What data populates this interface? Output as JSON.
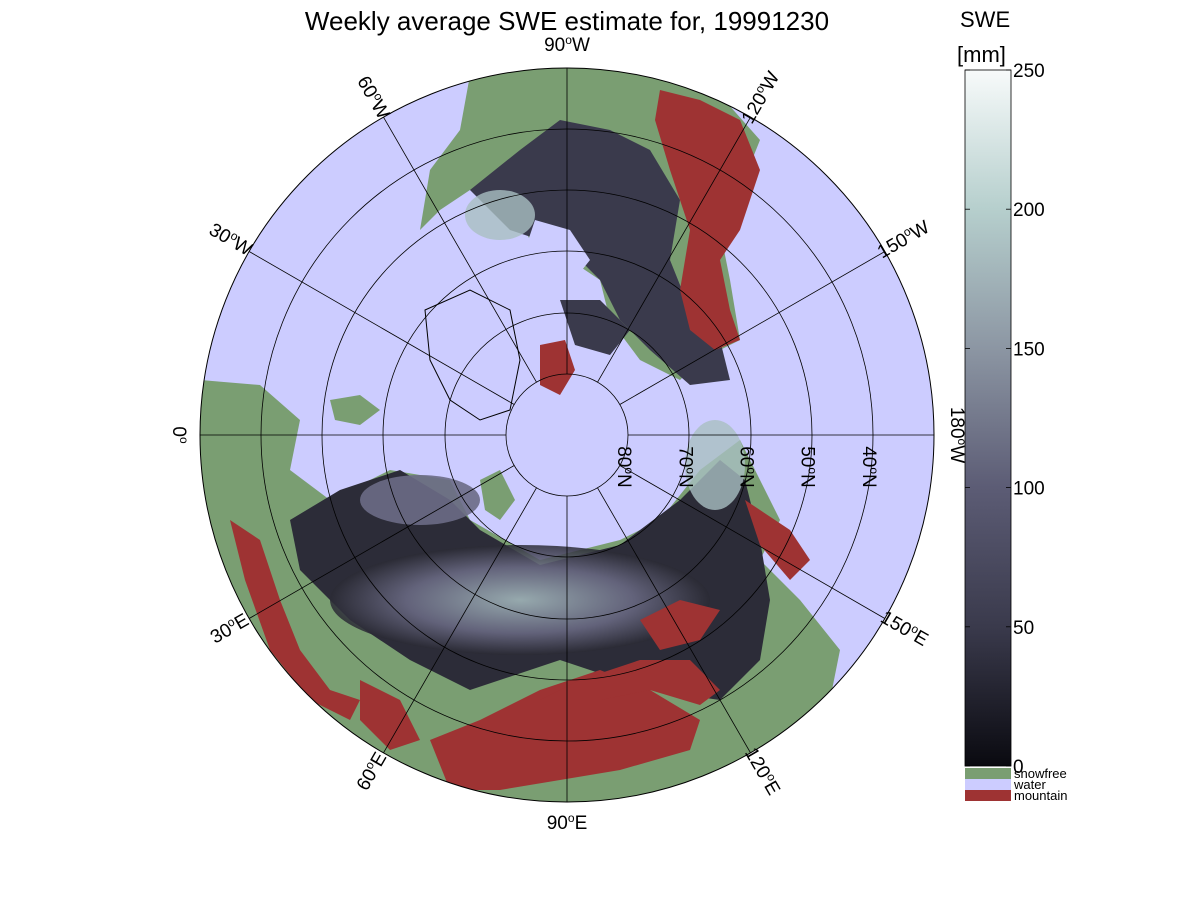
{
  "title": "Weekly average SWE estimate for, 19991230",
  "colorbar": {
    "title_line1": "SWE",
    "title_line2": "[mm]",
    "min": 0,
    "max": 250,
    "ticks": [
      "0",
      "50",
      "100",
      "150",
      "200",
      "250"
    ],
    "tick_values": [
      0,
      50,
      100,
      150,
      200,
      250
    ]
  },
  "categories": [
    {
      "label": "snowfree",
      "color": "#7a9e72"
    },
    {
      "label": "water",
      "color": "#ccccff"
    },
    {
      "label": "mountain",
      "color": "#9e3333"
    }
  ],
  "longitude_labels": [
    {
      "main": "90",
      "dir": "W",
      "lon": -90
    },
    {
      "main": "120",
      "dir": "W",
      "lon": -120
    },
    {
      "main": "150",
      "dir": "W",
      "lon": -150
    },
    {
      "main": "180",
      "dir": "W",
      "lon": 180
    },
    {
      "main": "150",
      "dir": "E",
      "lon": 150
    },
    {
      "main": "120",
      "dir": "E",
      "lon": 120
    },
    {
      "main": "90",
      "dir": "E",
      "lon": 90
    },
    {
      "main": "60",
      "dir": "E",
      "lon": 60
    },
    {
      "main": "30",
      "dir": "E",
      "lon": 30
    },
    {
      "main": "0",
      "dir": "",
      "lon": 0
    },
    {
      "main": "30",
      "dir": "W",
      "lon": -30
    },
    {
      "main": "60",
      "dir": "W",
      "lon": -60
    }
  ],
  "latitude_labels": [
    {
      "main": "80",
      "dir": "N",
      "lat": 80
    },
    {
      "main": "70",
      "dir": "N",
      "lat": 70
    },
    {
      "main": "60",
      "dir": "N",
      "lat": 60
    },
    {
      "main": "50",
      "dir": "N",
      "lat": 50
    },
    {
      "main": "40",
      "dir": "N",
      "lat": 40
    }
  ],
  "deg_symbol": "o",
  "colors": {
    "water": "#ccccff",
    "snowfree": "#7a9e72",
    "mountain": "#9e3333",
    "snow_low": "#0a0a10",
    "snow_high": "#f7fafa"
  }
}
